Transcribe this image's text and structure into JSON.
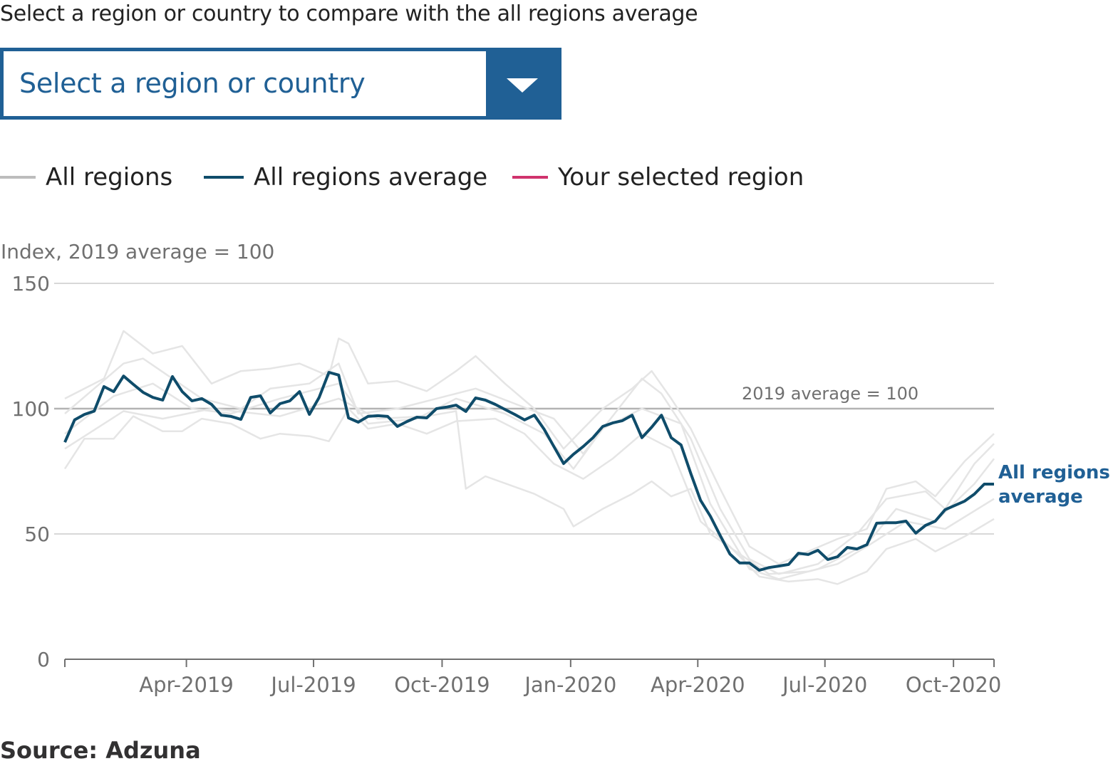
{
  "prompt": "Select a region or country to compare with the all regions average",
  "dropdown": {
    "selected": "Select a region or country",
    "icon": "chevron-down-icon"
  },
  "legend": [
    {
      "label": "All regions",
      "color": "#bdbdbd"
    },
    {
      "label": "All regions average",
      "color": "#0f4c6a"
    },
    {
      "label": "Your selected region",
      "color": "#d0336d"
    }
  ],
  "source": "Source: Adzuna",
  "colors": {
    "brand": "#206095",
    "average": "#0f4c6a",
    "regions": "#e5e5e5",
    "grid": "#cccccc",
    "reference": "#b3b3b3"
  },
  "chart_data": {
    "type": "line",
    "ylabel": "Index, 2019 average = 100",
    "ylim": [
      0,
      150
    ],
    "y_ticks": [
      0,
      50,
      100,
      150
    ],
    "xlim": [
      "2019-01-04",
      "2020-10-30"
    ],
    "x_ticks": [
      {
        "label": "Apr-2019",
        "date": "2019-04-01"
      },
      {
        "label": "Jul-2019",
        "date": "2019-07-01"
      },
      {
        "label": "Oct-2019",
        "date": "2019-10-01"
      },
      {
        "label": "Jan-2020",
        "date": "2020-01-01"
      },
      {
        "label": "Apr-2020",
        "date": "2020-04-01"
      },
      {
        "label": "Jul-2020",
        "date": "2020-07-01"
      },
      {
        "label": "Oct-2020",
        "date": "2020-10-01"
      }
    ],
    "grid": true,
    "reference_line": {
      "value": 100,
      "label": "2019 average = 100"
    },
    "end_label": [
      "All regions",
      "average"
    ],
    "average": {
      "name": "All regions average",
      "dates": [
        "2019-01-04",
        "2019-01-11",
        "2019-01-18",
        "2019-01-25",
        "2019-02-01",
        "2019-02-08",
        "2019-02-15",
        "2019-02-22",
        "2019-03-01",
        "2019-03-08",
        "2019-03-15",
        "2019-03-22",
        "2019-03-29",
        "2019-04-05",
        "2019-04-12",
        "2019-04-19",
        "2019-04-26",
        "2019-05-03",
        "2019-05-10",
        "2019-05-17",
        "2019-05-24",
        "2019-05-31",
        "2019-06-07",
        "2019-06-14",
        "2019-06-21",
        "2019-06-28",
        "2019-07-05",
        "2019-07-12",
        "2019-07-19",
        "2019-07-26",
        "2019-08-02",
        "2019-08-09",
        "2019-08-16",
        "2019-08-23",
        "2019-08-30",
        "2019-09-06",
        "2019-09-13",
        "2019-09-20",
        "2019-09-27",
        "2019-10-04",
        "2019-10-11",
        "2019-10-18",
        "2019-10-25",
        "2019-11-01",
        "2019-11-08",
        "2019-11-15",
        "2019-11-22",
        "2019-11-29",
        "2019-12-06",
        "2019-12-13",
        "2019-12-20",
        "2019-12-27",
        "2020-01-03",
        "2020-01-10",
        "2020-01-17",
        "2020-01-24",
        "2020-01-31",
        "2020-02-07",
        "2020-02-14",
        "2020-02-21",
        "2020-02-28",
        "2020-03-06",
        "2020-03-13",
        "2020-03-20",
        "2020-03-27",
        "2020-04-03",
        "2020-04-10",
        "2020-04-17",
        "2020-04-24",
        "2020-05-01",
        "2020-05-08",
        "2020-05-15",
        "2020-05-22",
        "2020-05-29",
        "2020-06-05",
        "2020-06-12",
        "2020-06-19",
        "2020-06-26",
        "2020-07-03",
        "2020-07-10",
        "2020-07-17",
        "2020-07-24",
        "2020-07-31",
        "2020-08-07",
        "2020-08-14",
        "2020-08-21",
        "2020-08-28",
        "2020-09-04",
        "2020-09-11",
        "2020-09-18",
        "2020-09-25",
        "2020-10-02",
        "2020-10-09",
        "2020-10-16",
        "2020-10-23",
        "2020-10-30"
      ],
      "values": [
        86.6,
        95.5,
        97.7,
        99,
        108.8,
        106.8,
        113,
        109.7,
        106.5,
        104.5,
        103.4,
        112.8,
        106.8,
        103.1,
        104,
        101.7,
        97.4,
        96.9,
        95.7,
        104.5,
        105.1,
        98.3,
        102,
        103.1,
        106.8,
        97.7,
        104.5,
        114.5,
        113.4,
        96.3,
        94.6,
        96.9,
        97.2,
        96.9,
        92.9,
        94.9,
        96.6,
        96.3,
        100,
        100.6,
        101.4,
        98.9,
        104.3,
        103.4,
        101.7,
        99.7,
        97.7,
        95.5,
        97.4,
        91.8,
        84.9,
        78.1,
        81.8,
        84.9,
        88.4,
        92.9,
        94.3,
        95.2,
        97.4,
        88.4,
        92.6,
        97.4,
        88.4,
        85.5,
        74.1,
        63.4,
        57.1,
        49.4,
        42,
        38.4,
        38.4,
        35.5,
        36.6,
        37.2,
        37.8,
        42.3,
        41.8,
        43.5,
        39.8,
        40.9,
        44.6,
        44,
        45.7,
        54.3,
        54.5,
        54.5,
        55.1,
        50.3,
        53.4,
        55.1,
        59.7,
        61.4,
        63.1,
        65.9,
        69.9,
        69.9
      ]
    },
    "regions": [
      {
        "points": [
          [
            "2019-01-04",
            104
          ],
          [
            "2019-02-01",
            112
          ],
          [
            "2019-02-15",
            131
          ],
          [
            "2019-03-08",
            122
          ],
          [
            "2019-03-29",
            125
          ],
          [
            "2019-04-19",
            110
          ],
          [
            "2019-05-10",
            115
          ],
          [
            "2019-05-31",
            116
          ],
          [
            "2019-06-21",
            118
          ],
          [
            "2019-07-12",
            113
          ],
          [
            "2019-07-19",
            128
          ],
          [
            "2019-07-26",
            126
          ],
          [
            "2019-08-09",
            110
          ],
          [
            "2019-08-30",
            111
          ],
          [
            "2019-09-20",
            107
          ],
          [
            "2019-10-11",
            115
          ],
          [
            "2019-10-25",
            121
          ],
          [
            "2019-11-15",
            110
          ],
          [
            "2019-12-06",
            100
          ],
          [
            "2019-12-27",
            84
          ],
          [
            "2020-01-24",
            100
          ],
          [
            "2020-02-14",
            108
          ],
          [
            "2020-02-28",
            115
          ],
          [
            "2020-03-13",
            104
          ],
          [
            "2020-03-27",
            92
          ],
          [
            "2020-04-17",
            68
          ],
          [
            "2020-05-08",
            45
          ],
          [
            "2020-05-29",
            38
          ],
          [
            "2020-06-19",
            43
          ],
          [
            "2020-07-10",
            48
          ],
          [
            "2020-07-31",
            52
          ],
          [
            "2020-08-14",
            68
          ],
          [
            "2020-09-04",
            71
          ],
          [
            "2020-09-18",
            65
          ],
          [
            "2020-10-09",
            79
          ],
          [
            "2020-10-30",
            90
          ]
        ]
      },
      {
        "points": [
          [
            "2019-01-04",
            76
          ],
          [
            "2019-01-18",
            88
          ],
          [
            "2019-02-08",
            88
          ],
          [
            "2019-02-22",
            97
          ],
          [
            "2019-03-15",
            91
          ],
          [
            "2019-03-29",
            91
          ],
          [
            "2019-04-12",
            96
          ],
          [
            "2019-05-03",
            94
          ],
          [
            "2019-05-24",
            88
          ],
          [
            "2019-06-07",
            90
          ],
          [
            "2019-06-28",
            89
          ],
          [
            "2019-07-12",
            87
          ],
          [
            "2019-07-26",
            100
          ],
          [
            "2019-08-09",
            92
          ],
          [
            "2019-08-30",
            94
          ],
          [
            "2019-09-20",
            90
          ],
          [
            "2019-10-11",
            95
          ],
          [
            "2019-11-08",
            96
          ],
          [
            "2019-11-29",
            90
          ],
          [
            "2019-12-20",
            78
          ],
          [
            "2020-01-10",
            72
          ],
          [
            "2020-01-31",
            80
          ],
          [
            "2020-02-21",
            90
          ],
          [
            "2020-03-13",
            84
          ],
          [
            "2020-04-03",
            55
          ],
          [
            "2020-04-24",
            45
          ],
          [
            "2020-05-15",
            33
          ],
          [
            "2020-06-05",
            31
          ],
          [
            "2020-06-26",
            32
          ],
          [
            "2020-07-10",
            30
          ],
          [
            "2020-07-31",
            35
          ],
          [
            "2020-08-14",
            44
          ],
          [
            "2020-09-04",
            48
          ],
          [
            "2020-09-18",
            43
          ],
          [
            "2020-10-09",
            49
          ],
          [
            "2020-10-30",
            56
          ]
        ]
      },
      {
        "points": [
          [
            "2019-01-04",
            84
          ],
          [
            "2019-02-15",
            99
          ],
          [
            "2019-03-15",
            96
          ],
          [
            "2019-04-19",
            100
          ],
          [
            "2019-06-07",
            97
          ],
          [
            "2019-07-19",
            104
          ],
          [
            "2019-08-16",
            96
          ],
          [
            "2019-09-20",
            97
          ],
          [
            "2019-10-11",
            99
          ],
          [
            "2019-10-18",
            68
          ],
          [
            "2019-11-01",
            73
          ],
          [
            "2019-12-06",
            66
          ],
          [
            "2019-12-27",
            60
          ],
          [
            "2020-01-03",
            53
          ],
          [
            "2020-01-24",
            60
          ],
          [
            "2020-02-14",
            66
          ],
          [
            "2020-02-28",
            71
          ],
          [
            "2020-03-13",
            65
          ],
          [
            "2020-03-27",
            68
          ],
          [
            "2020-04-10",
            50
          ],
          [
            "2020-05-01",
            42
          ],
          [
            "2020-05-22",
            34
          ],
          [
            "2020-06-19",
            35
          ],
          [
            "2020-07-10",
            38
          ],
          [
            "2020-07-31",
            45
          ],
          [
            "2020-08-28",
            55
          ],
          [
            "2020-09-25",
            52
          ],
          [
            "2020-10-30",
            64
          ]
        ]
      },
      {
        "points": [
          [
            "2019-01-04",
            98
          ],
          [
            "2019-02-15",
            118
          ],
          [
            "2019-03-01",
            120
          ],
          [
            "2019-03-22",
            112
          ],
          [
            "2019-04-12",
            104
          ],
          [
            "2019-05-10",
            100
          ],
          [
            "2019-05-31",
            108
          ],
          [
            "2019-06-28",
            110
          ],
          [
            "2019-07-19",
            118
          ],
          [
            "2019-08-02",
            98
          ],
          [
            "2019-08-30",
            100
          ],
          [
            "2019-09-27",
            104
          ],
          [
            "2019-10-25",
            108
          ],
          [
            "2019-11-22",
            102
          ],
          [
            "2019-12-20",
            96
          ],
          [
            "2020-01-10",
            82
          ],
          [
            "2020-01-31",
            97
          ],
          [
            "2020-02-21",
            112
          ],
          [
            "2020-03-06",
            106
          ],
          [
            "2020-03-27",
            88
          ],
          [
            "2020-04-17",
            60
          ],
          [
            "2020-05-08",
            40
          ],
          [
            "2020-05-29",
            34
          ],
          [
            "2020-06-26",
            38
          ],
          [
            "2020-07-24",
            50
          ],
          [
            "2020-08-14",
            64
          ],
          [
            "2020-09-11",
            67
          ],
          [
            "2020-09-25",
            60
          ],
          [
            "2020-10-16",
            78
          ],
          [
            "2020-10-30",
            86
          ]
        ]
      },
      {
        "points": [
          [
            "2019-01-04",
            90
          ],
          [
            "2019-02-08",
            105
          ],
          [
            "2019-03-08",
            110
          ],
          [
            "2019-04-05",
            100
          ],
          [
            "2019-05-03",
            98
          ],
          [
            "2019-06-07",
            104
          ],
          [
            "2019-07-19",
            110
          ],
          [
            "2019-08-09",
            94
          ],
          [
            "2019-09-13",
            96
          ],
          [
            "2019-10-11",
            104
          ],
          [
            "2019-11-15",
            98
          ],
          [
            "2019-12-13",
            90
          ],
          [
            "2020-01-03",
            76
          ],
          [
            "2020-01-24",
            92
          ],
          [
            "2020-02-21",
            100
          ],
          [
            "2020-03-20",
            94
          ],
          [
            "2020-04-10",
            62
          ],
          [
            "2020-05-08",
            36
          ],
          [
            "2020-05-29",
            32
          ],
          [
            "2020-06-26",
            36
          ],
          [
            "2020-07-31",
            46
          ],
          [
            "2020-08-21",
            60
          ],
          [
            "2020-09-18",
            55
          ],
          [
            "2020-10-16",
            70
          ],
          [
            "2020-10-30",
            80
          ]
        ]
      }
    ]
  }
}
